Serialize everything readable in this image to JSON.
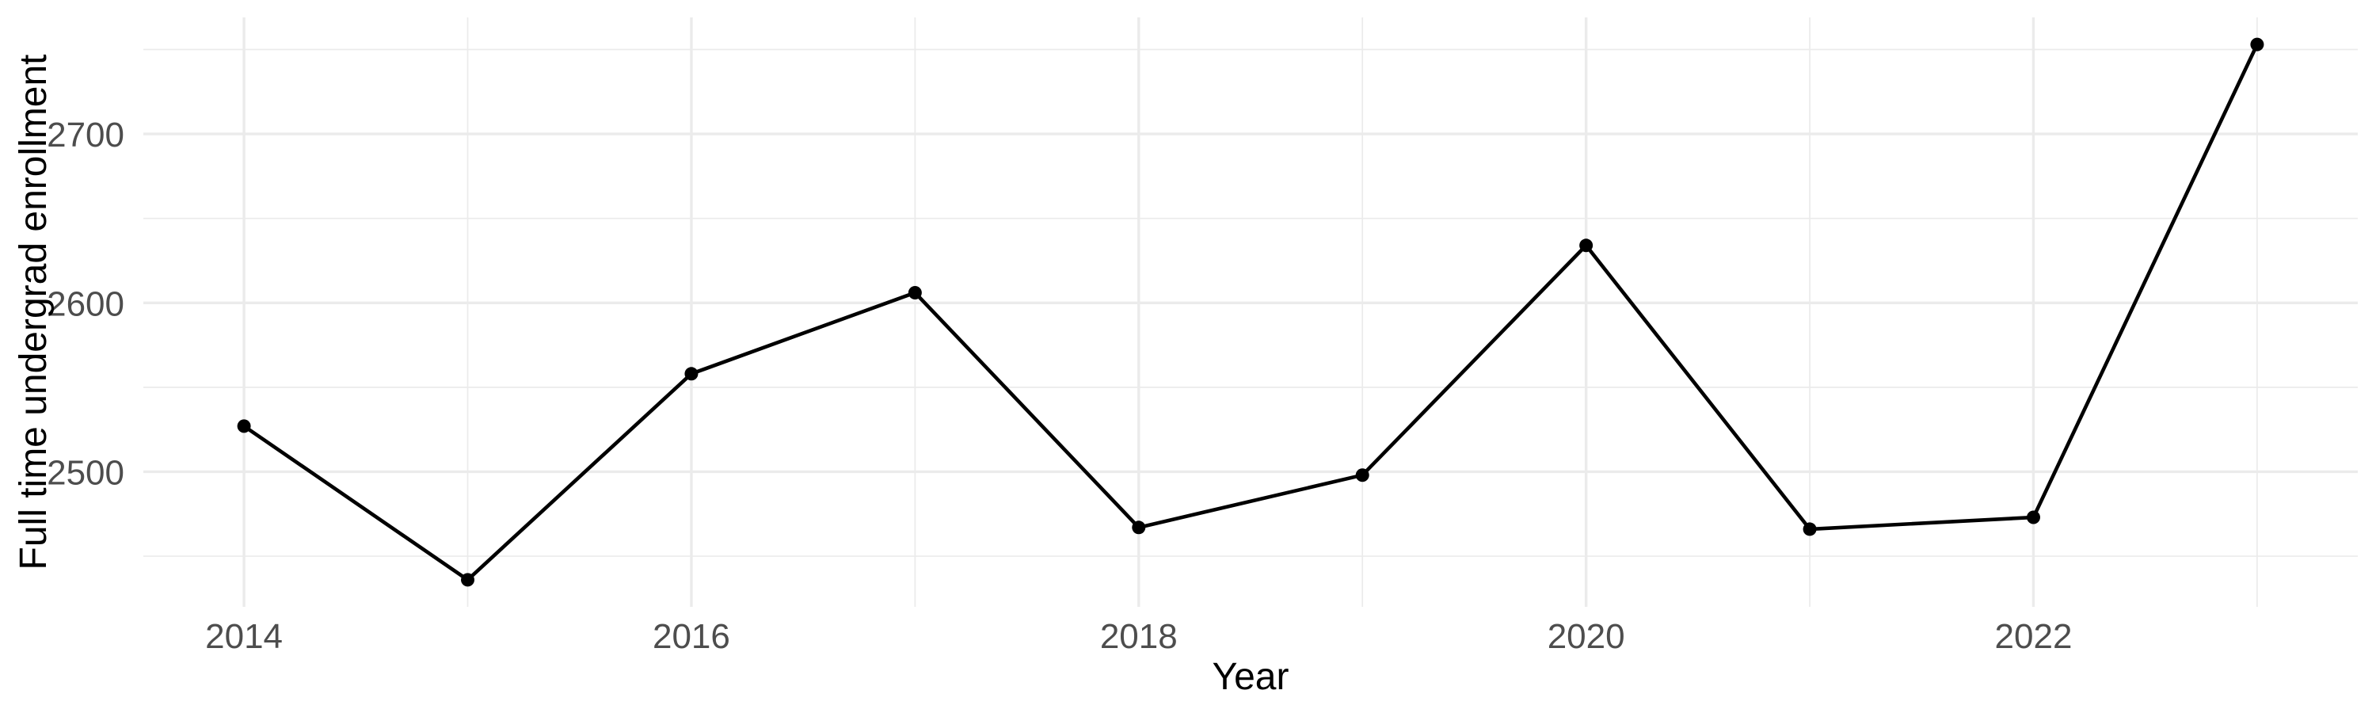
{
  "chart_data": {
    "type": "line",
    "title": "",
    "xlabel": "Year",
    "ylabel": "Full time undergrad enrollment",
    "x": [
      2014,
      2015,
      2016,
      2017,
      2018,
      2019,
      2020,
      2021,
      2022,
      2023
    ],
    "series": [
      {
        "name": "Full time undergrad enrollment",
        "values": [
          2527,
          2436,
          2558,
          2606,
          2467,
          2498,
          2634,
          2466,
          2473,
          2753
        ]
      }
    ],
    "xlim": [
      2013.55,
      2023.45
    ],
    "ylim": [
      2420,
      2769
    ],
    "x_major_ticks": [
      2014,
      2016,
      2018,
      2020,
      2022
    ],
    "x_minor_gridlines": [
      2015,
      2017,
      2019,
      2021,
      2023
    ],
    "y_major_ticks": [
      2500,
      2600,
      2700
    ],
    "y_minor_gridlines": [
      2450,
      2550,
      2650,
      2750
    ],
    "grid": "on",
    "legend_position": "none",
    "marker": "filled-circle",
    "colors": {
      "line": "#000000",
      "point": "#000000",
      "grid_major": "#EBEBEB",
      "grid_minor": "#EBEBEB",
      "tick_label": "#4D4D4D",
      "axis_title": "#000000",
      "background": "#FFFFFF"
    }
  }
}
